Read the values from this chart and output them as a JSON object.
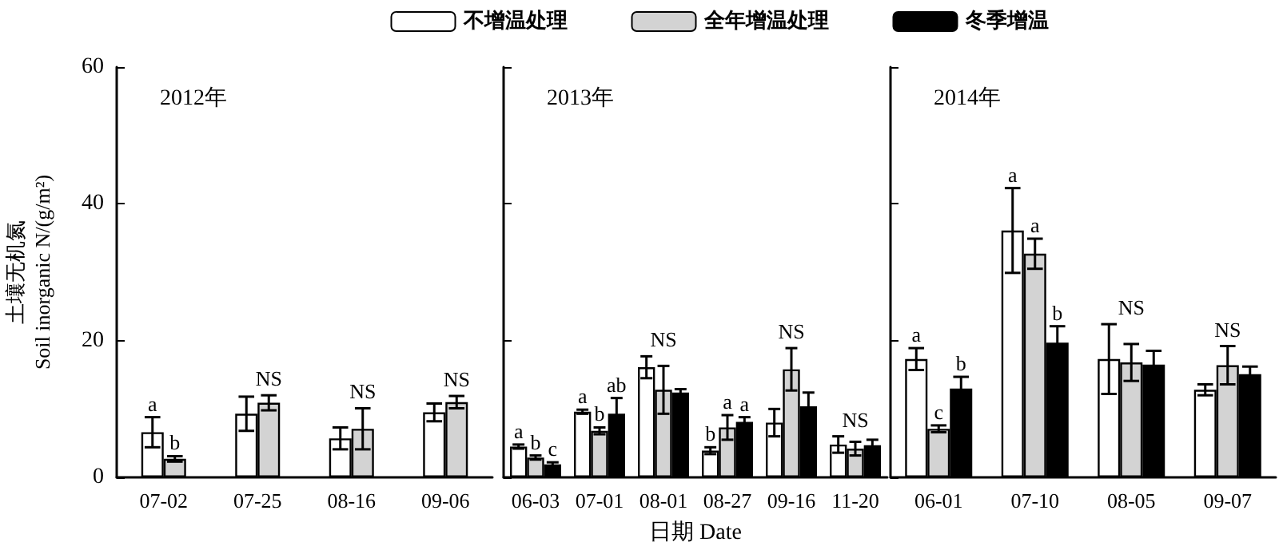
{
  "chart_data": [
    {
      "type": "bar",
      "title": "2012年",
      "ylabel": "土壤无机氮\nSoil inorganic N/(g/m²)",
      "categories": [
        "07-02",
        "07-25",
        "08-16",
        "09-06"
      ],
      "ylim": [
        0,
        60
      ],
      "yticks": [
        0,
        20,
        40,
        60
      ],
      "series": [
        {
          "color": "#ffffff",
          "values": [
            6.6,
            9.3,
            5.7,
            9.5
          ],
          "errors": [
            2.2,
            2.5,
            1.6,
            1.3
          ],
          "value_labels": [
            "a",
            null,
            null,
            null
          ]
        },
        {
          "color": "#d3d3d3",
          "values": [
            2.7,
            10.9,
            7.1,
            11.0
          ],
          "errors": [
            0.4,
            1.1,
            3.0,
            0.9
          ],
          "value_labels": [
            "b",
            "NS",
            "NS",
            "NS"
          ]
        }
      ]
    },
    {
      "type": "bar",
      "title": "2013年",
      "xlabel": "日期 Date",
      "categories": [
        "06-03",
        "07-01",
        "08-01",
        "08-27",
        "09-16",
        "11-20"
      ],
      "ylim": [
        0,
        60
      ],
      "yticks": [
        0,
        20,
        40,
        60
      ],
      "tick_labels": "x",
      "legend": "top",
      "series": [
        {
          "name": "不增温处理",
          "color": "#ffffff",
          "values": [
            4.5,
            9.6,
            16.1,
            3.9,
            8.0,
            4.8
          ],
          "errors": [
            0.3,
            0.3,
            1.6,
            0.5,
            2.0,
            1.2
          ],
          "value_labels": [
            "a",
            "a",
            null,
            "b",
            null,
            null
          ]
        },
        {
          "name": "全年增温处理",
          "color": "#d3d3d3",
          "values": [
            2.9,
            6.8,
            12.8,
            7.3,
            15.8,
            4.2
          ],
          "errors": [
            0.3,
            0.5,
            3.5,
            1.8,
            3.1,
            1.0
          ],
          "value_labels": [
            "b",
            "b",
            "NS",
            "a",
            "NS",
            "NS"
          ]
        },
        {
          "name": "冬季增温",
          "color": "#000000",
          "values": [
            1.9,
            9.3,
            12.4,
            8.1,
            10.4,
            4.7
          ],
          "errors": [
            0.3,
            2.3,
            0.5,
            0.7,
            2.0,
            0.8
          ],
          "value_labels": [
            "c",
            "ab",
            null,
            "a",
            null,
            null
          ]
        }
      ]
    },
    {
      "type": "bar",
      "title": "2014年",
      "categories": [
        "06-01",
        "07-10",
        "08-05",
        "09-07"
      ],
      "ylim": [
        0,
        60
      ],
      "yticks": [
        0,
        20,
        40,
        60
      ],
      "tick_labels": "x",
      "series": [
        {
          "color": "#ffffff",
          "values": [
            17.3,
            36.1,
            17.3,
            12.8
          ],
          "errors": [
            1.6,
            6.2,
            5.1,
            0.8
          ],
          "value_labels": [
            "a",
            "a",
            null,
            null
          ]
        },
        {
          "color": "#d3d3d3",
          "values": [
            7.1,
            32.7,
            16.8,
            16.4
          ],
          "errors": [
            0.5,
            2.2,
            2.7,
            2.8
          ],
          "value_labels": [
            "c",
            "a",
            "NS",
            "NS"
          ]
        },
        {
          "color": "#000000",
          "values": [
            13.0,
            19.7,
            16.5,
            15.1
          ],
          "errors": [
            1.7,
            2.4,
            2.0,
            1.1
          ],
          "value_labels": [
            "b",
            "b",
            null,
            null
          ]
        }
      ]
    }
  ]
}
